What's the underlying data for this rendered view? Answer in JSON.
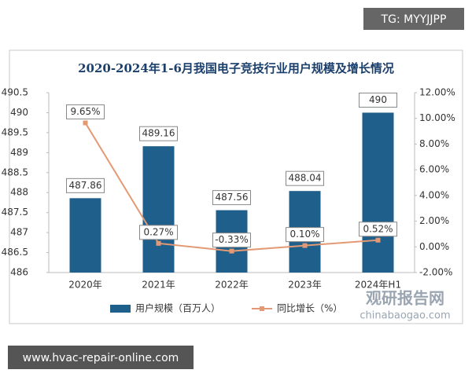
{
  "chart_data": {
    "type": "bar_line",
    "title": "2020-2024年1-6月我国电子竞技行业用户规模及增长情况",
    "categories": [
      "2020年",
      "2021年",
      "2022年",
      "2023年",
      "2024年H1"
    ],
    "series": [
      {
        "name": "用户规模（百万人）",
        "type": "bar",
        "color": "#1f5f8b",
        "values": [
          487.86,
          489.16,
          487.56,
          488.04,
          490
        ]
      },
      {
        "name": "同比增长（%）",
        "type": "line",
        "axis": "y2",
        "color": "#e39a74",
        "values": [
          9.65,
          0.27,
          -0.33,
          0.1,
          0.52
        ],
        "value_labels": [
          "9.65%",
          "0.27%",
          "-0.33%",
          "0.10%",
          "0.52%"
        ]
      }
    ],
    "ylim": [
      486,
      490.5
    ],
    "yticks": [
      486,
      486.5,
      487,
      487.5,
      488,
      488.5,
      489,
      489.5,
      490,
      490.5
    ],
    "y2lim": [
      -2,
      12
    ],
    "y2ticks": [
      {
        "value": -2,
        "label": "-2.00%"
      },
      {
        "value": 0,
        "label": "0.00%"
      },
      {
        "value": 2,
        "label": "2.00%"
      },
      {
        "value": 4,
        "label": "4.00%"
      },
      {
        "value": 6,
        "label": "6.00%"
      },
      {
        "value": 8,
        "label": "8.00%"
      },
      {
        "value": 10,
        "label": "10.00%"
      },
      {
        "value": 12,
        "label": "12.00%"
      }
    ],
    "grid": false,
    "legend": "bottom"
  },
  "overlays": {
    "top_right": "TG: MYYJJPP",
    "bottom_left": "www.hvac-repair-online.com",
    "brand": "观研报告网",
    "brand_url": "chinabaogao.com"
  }
}
